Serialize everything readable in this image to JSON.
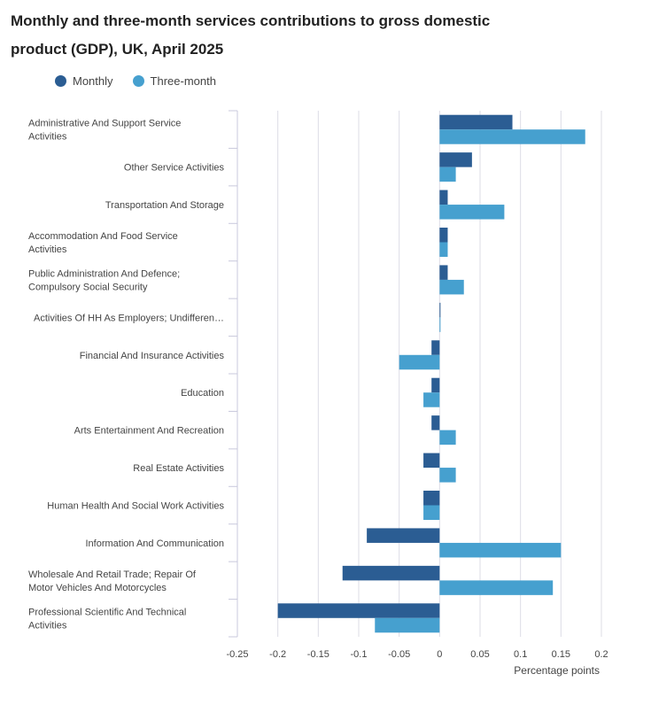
{
  "title": "Monthly and three-month services contributions to gross domestic product (GDP), UK, April 2025",
  "colors": {
    "monthly": "#2b5d93",
    "three_month": "#46a0cf",
    "grid": "#dcdce6",
    "axis": "#c8c8dc",
    "text": "#444444"
  },
  "chart_data": {
    "type": "bar",
    "orientation": "horizontal",
    "title": "Monthly and three-month services contributions to gross domestic product (GDP), UK, April 2025",
    "xlabel": "Percentage points",
    "ylabel": "",
    "xlim": [
      -0.25,
      0.2
    ],
    "xticks": [
      -0.25,
      -0.2,
      -0.15,
      -0.1,
      -0.05,
      0,
      0.05,
      0.1,
      0.15,
      0.2
    ],
    "xtick_labels": [
      "-0.25",
      "-0.2",
      "-0.15",
      "-0.1",
      "-0.05",
      "0",
      "0.05",
      "0.1",
      "0.15",
      "0.2"
    ],
    "grid": true,
    "legend_position": "top-left",
    "categories": [
      [
        "Administrative And Support Service",
        "Activities"
      ],
      [
        "Other Service Activities"
      ],
      [
        "Transportation And Storage"
      ],
      [
        "Accommodation And Food Service",
        "Activities"
      ],
      [
        "Public Administration And Defence;",
        "Compulsory Social Security"
      ],
      [
        "Activities Of HH As Employers; Undifferen…"
      ],
      [
        "Financial And Insurance Activities"
      ],
      [
        "Education"
      ],
      [
        "Arts Entertainment And Recreation"
      ],
      [
        "Real Estate Activities"
      ],
      [
        "Human Health And Social Work Activities"
      ],
      [
        "Information And Communication"
      ],
      [
        "Wholesale And Retail Trade; Repair Of",
        "Motor Vehicles And Motorcycles"
      ],
      [
        "Professional Scientific And Technical",
        "Activities"
      ]
    ],
    "series": [
      {
        "name": "Monthly",
        "values": [
          0.09,
          0.04,
          0.01,
          0.01,
          0.01,
          0.0,
          -0.01,
          -0.01,
          -0.01,
          -0.02,
          -0.02,
          -0.09,
          -0.12,
          -0.2
        ]
      },
      {
        "name": "Three-month",
        "values": [
          0.18,
          0.02,
          0.08,
          0.01,
          0.03,
          0.0,
          -0.05,
          -0.02,
          0.02,
          0.02,
          -0.02,
          0.15,
          0.14,
          -0.08
        ]
      }
    ]
  }
}
